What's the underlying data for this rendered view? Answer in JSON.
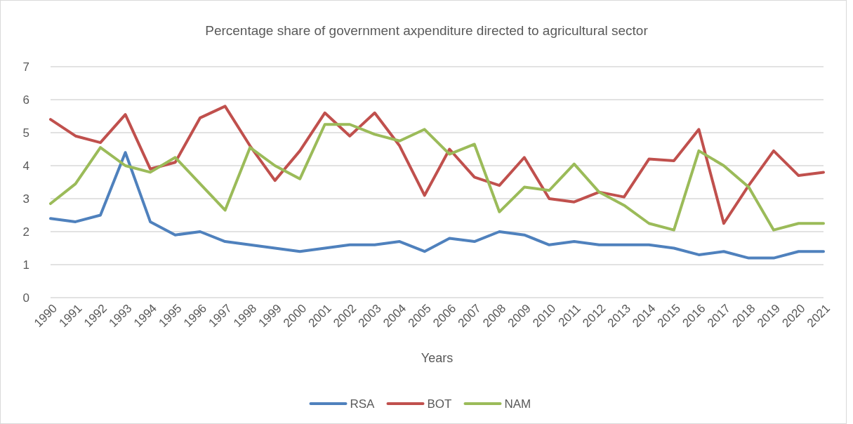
{
  "chart_data": {
    "type": "line",
    "title": "Percentage share of government axpenditure directed to agricultural sector",
    "xlabel": "Years",
    "categories": [
      "1990",
      "1991",
      "1992",
      "1993",
      "1994",
      "1995",
      "1996",
      "1997",
      "1998",
      "1999",
      "2000",
      "2001",
      "2002",
      "2003",
      "2004",
      "2005",
      "2006",
      "2007",
      "2008",
      "2009",
      "2010",
      "2011",
      "2012",
      "2013",
      "2014",
      "2015",
      "2016",
      "2017",
      "2018",
      "2019",
      "2020",
      "2021"
    ],
    "series": [
      {
        "name": "RSA",
        "color": "#4f81bd",
        "values": [
          2.4,
          2.3,
          2.5,
          4.4,
          2.3,
          1.9,
          2.0,
          1.7,
          1.6,
          1.5,
          1.4,
          1.5,
          1.6,
          1.6,
          1.7,
          1.4,
          1.8,
          1.7,
          2.0,
          1.9,
          1.6,
          1.7,
          1.6,
          1.6,
          1.6,
          1.5,
          1.3,
          1.4,
          1.2,
          1.2,
          1.4,
          1.4
        ]
      },
      {
        "name": "BOT",
        "color": "#c0504d",
        "values": [
          5.4,
          4.9,
          4.7,
          5.55,
          3.9,
          4.1,
          5.45,
          5.8,
          4.6,
          3.55,
          4.45,
          5.6,
          4.9,
          5.6,
          4.6,
          3.1,
          4.5,
          3.65,
          3.4,
          4.25,
          3.0,
          2.9,
          3.2,
          3.05,
          4.2,
          4.15,
          5.1,
          2.25,
          3.4,
          4.45,
          3.7,
          3.8
        ]
      },
      {
        "name": "NAM",
        "color": "#9bbb59",
        "values": [
          2.85,
          3.45,
          4.55,
          4.0,
          3.8,
          4.25,
          3.45,
          2.65,
          4.55,
          4.0,
          3.6,
          5.25,
          5.25,
          4.95,
          4.75,
          5.1,
          4.35,
          4.65,
          2.6,
          3.35,
          3.25,
          4.05,
          3.2,
          2.8,
          2.25,
          2.05,
          4.45,
          4.0,
          3.35,
          2.05,
          2.25,
          2.25
        ]
      }
    ],
    "ylim": [
      0,
      7
    ],
    "yticks": [
      0,
      1,
      2,
      3,
      4,
      5,
      6,
      7
    ],
    "grid": "y",
    "legend": "bottom",
    "marker": "none",
    "line_style": "solid"
  }
}
